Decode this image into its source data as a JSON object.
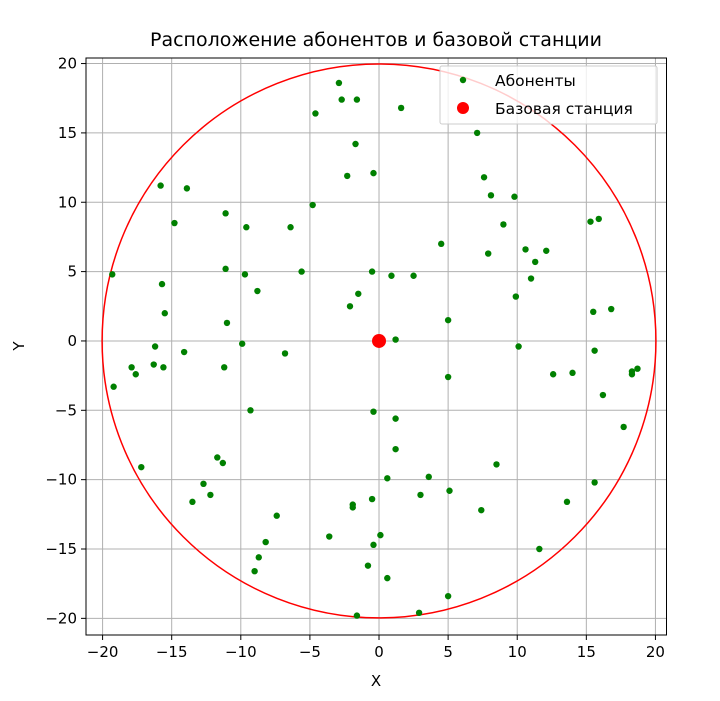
{
  "chart_data": {
    "type": "scatter",
    "title": "Расположение абонентов и базовой станции",
    "xlabel": "X",
    "ylabel": "Y",
    "xlim": [
      -21.2,
      20.8
    ],
    "ylim": [
      -21.2,
      20.4
    ],
    "xticks": [
      -20,
      -15,
      -10,
      -5,
      0,
      5,
      10,
      15,
      20
    ],
    "yticks": [
      -20,
      -15,
      -10,
      -5,
      0,
      5,
      10,
      15,
      20
    ],
    "xtick_labels": [
      "−20",
      "−15",
      "−10",
      "−5",
      "0",
      "5",
      "10",
      "15",
      "20"
    ],
    "ytick_labels": [
      "−20",
      "−15",
      "−10",
      "−5",
      "0",
      "5",
      "10",
      "15",
      "20"
    ],
    "grid": true,
    "legend_position": "top-right",
    "circle": {
      "center": [
        0,
        0
      ],
      "radius": 20,
      "color": "#ff0000"
    },
    "series": [
      {
        "name": "Абоненты",
        "color": "#008000",
        "points": [
          [
            -19.3,
            4.8
          ],
          [
            -19.2,
            -3.3
          ],
          [
            -17.9,
            -1.9
          ],
          [
            -17.6,
            -2.4
          ],
          [
            -17.2,
            -9.1
          ],
          [
            -16.3,
            -1.7
          ],
          [
            -16.2,
            -0.4
          ],
          [
            -15.8,
            11.2
          ],
          [
            -15.7,
            4.1
          ],
          [
            -15.6,
            -1.9
          ],
          [
            -15.5,
            2.0
          ],
          [
            -14.8,
            8.5
          ],
          [
            -14.1,
            -0.8
          ],
          [
            -13.9,
            11.0
          ],
          [
            -13.5,
            -11.6
          ],
          [
            -12.7,
            -10.3
          ],
          [
            -12.2,
            -11.1
          ],
          [
            -11.7,
            -8.4
          ],
          [
            -11.3,
            -8.8
          ],
          [
            -11.2,
            -1.9
          ],
          [
            -11.1,
            9.2
          ],
          [
            -11.1,
            5.2
          ],
          [
            -11.0,
            1.3
          ],
          [
            -9.9,
            -0.2
          ],
          [
            -9.7,
            4.8
          ],
          [
            -9.6,
            8.2
          ],
          [
            -9.3,
            -5.0
          ],
          [
            -9.0,
            -16.6
          ],
          [
            -8.8,
            3.6
          ],
          [
            -8.7,
            -15.6
          ],
          [
            -8.2,
            -14.5
          ],
          [
            -7.4,
            -12.6
          ],
          [
            -6.8,
            -0.9
          ],
          [
            -6.4,
            8.2
          ],
          [
            -5.6,
            5.0
          ],
          [
            -4.8,
            9.8
          ],
          [
            -4.6,
            16.4
          ],
          [
            -3.6,
            -14.1
          ],
          [
            -2.9,
            18.6
          ],
          [
            -2.7,
            17.4
          ],
          [
            -2.3,
            11.9
          ],
          [
            -2.1,
            2.5
          ],
          [
            -1.9,
            -11.8
          ],
          [
            -1.9,
            -12.0
          ],
          [
            -1.7,
            14.2
          ],
          [
            -1.6,
            17.4
          ],
          [
            -1.5,
            3.4
          ],
          [
            -1.6,
            -19.8
          ],
          [
            -0.8,
            -16.2
          ],
          [
            -0.5,
            5.0
          ],
          [
            -0.4,
            12.1
          ],
          [
            -0.4,
            -5.1
          ],
          [
            -0.5,
            -11.4
          ],
          [
            -0.4,
            -14.7
          ],
          [
            0.1,
            -14.0
          ],
          [
            0.6,
            -9.9
          ],
          [
            0.6,
            -17.1
          ],
          [
            0.9,
            4.7
          ],
          [
            1.2,
            -5.6
          ],
          [
            1.2,
            0.1
          ],
          [
            1.2,
            -7.8
          ],
          [
            1.6,
            16.8
          ],
          [
            2.5,
            4.7
          ],
          [
            2.9,
            -19.6
          ],
          [
            3.0,
            -11.1
          ],
          [
            3.6,
            -9.8
          ],
          [
            4.5,
            7.0
          ],
          [
            5.0,
            1.5
          ],
          [
            5.0,
            -2.6
          ],
          [
            5.0,
            -18.4
          ],
          [
            5.1,
            -10.8
          ],
          [
            7.1,
            15.0
          ],
          [
            7.4,
            -12.2
          ],
          [
            7.6,
            11.8
          ],
          [
            7.9,
            6.3
          ],
          [
            8.1,
            10.5
          ],
          [
            8.5,
            -8.9
          ],
          [
            9.0,
            8.4
          ],
          [
            9.8,
            10.4
          ],
          [
            9.9,
            3.2
          ],
          [
            10.1,
            -0.4
          ],
          [
            10.6,
            6.6
          ],
          [
            11.0,
            4.5
          ],
          [
            11.3,
            5.7
          ],
          [
            11.6,
            -15.0
          ],
          [
            12.1,
            6.5
          ],
          [
            12.6,
            -2.4
          ],
          [
            13.6,
            -11.6
          ],
          [
            14.0,
            -2.3
          ],
          [
            15.3,
            8.6
          ],
          [
            15.5,
            2.1
          ],
          [
            15.6,
            -0.7
          ],
          [
            15.6,
            -10.2
          ],
          [
            15.9,
            8.8
          ],
          [
            16.2,
            -3.9
          ],
          [
            16.8,
            2.3
          ],
          [
            17.7,
            -6.2
          ],
          [
            18.3,
            -2.2
          ],
          [
            18.3,
            -2.4
          ],
          [
            18.7,
            -2.0
          ]
        ]
      },
      {
        "name": "Базовая станция",
        "color": "#ff0000",
        "points": [
          [
            0,
            0
          ]
        ]
      }
    ]
  }
}
